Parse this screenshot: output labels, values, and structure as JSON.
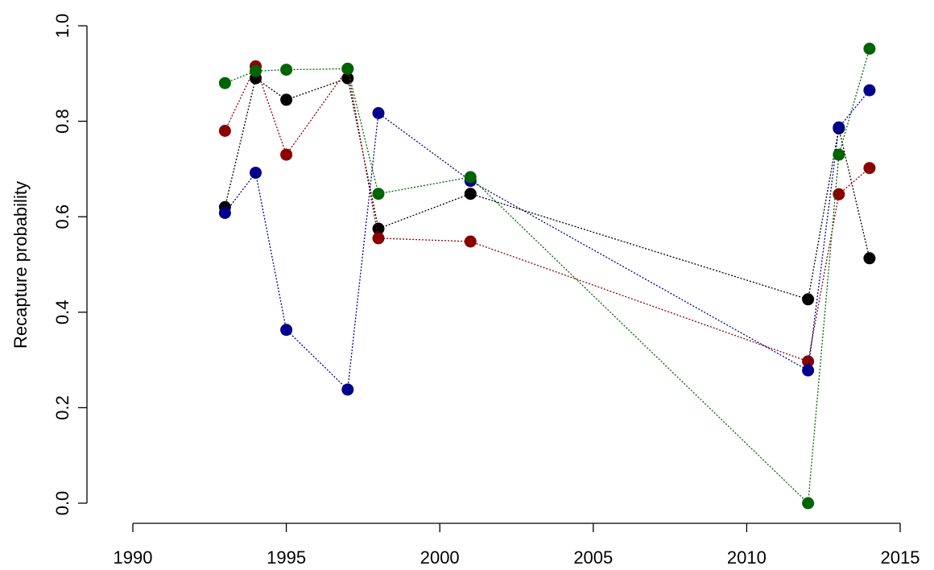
{
  "chart_data": {
    "type": "line",
    "title": "",
    "xlabel": "",
    "ylabel": "Recapture probability",
    "xlim": [
      1990,
      2015
    ],
    "ylim": [
      0.0,
      1.0
    ],
    "xticks": [
      "1990",
      "1995",
      "2000",
      "2005",
      "2010",
      "2015"
    ],
    "yticks": [
      "0.0",
      "0.2",
      "0.4",
      "0.6",
      "0.8",
      "1.0"
    ],
    "grid": false,
    "legend": "none",
    "series": [
      {
        "color": "#000000",
        "x": [
          1993,
          1994,
          1995,
          1997,
          1998,
          2001,
          2012,
          2013,
          2014
        ],
        "y": [
          0.62,
          0.89,
          0.845,
          0.89,
          0.575,
          0.648,
          0.427,
          0.785,
          0.513
        ]
      },
      {
        "color": "#8b0000",
        "x": [
          1993,
          1994,
          1995,
          1997,
          1998,
          2001,
          2012,
          2013,
          2014
        ],
        "y": [
          0.78,
          0.915,
          0.73,
          0.91,
          0.555,
          0.548,
          0.297,
          0.647,
          0.702
        ]
      },
      {
        "color": "#00008b",
        "x": [
          1993,
          1994,
          1995,
          1997,
          1998,
          2001,
          2012,
          2013,
          2014
        ],
        "y": [
          0.608,
          0.692,
          0.363,
          0.238,
          0.817,
          0.675,
          0.278,
          0.787,
          0.865
        ]
      },
      {
        "color": "#006400",
        "x": [
          1993,
          1994,
          1995,
          1997,
          1998,
          2001,
          2012,
          2013,
          2014
        ],
        "y": [
          0.88,
          0.905,
          0.908,
          0.91,
          0.648,
          0.683,
          0.0,
          0.73,
          0.952
        ]
      }
    ]
  }
}
